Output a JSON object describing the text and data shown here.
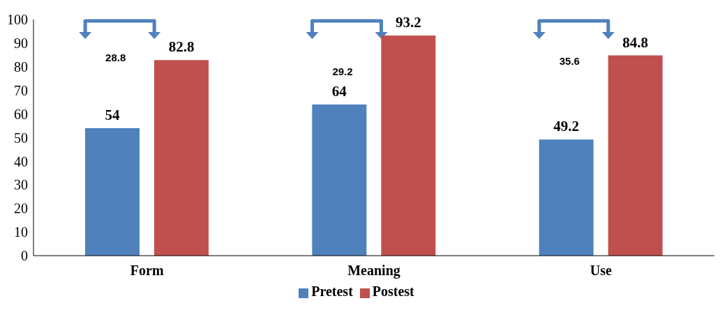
{
  "chart_data": {
    "type": "bar",
    "categories": [
      "Form",
      "Meaning",
      "Use"
    ],
    "series": [
      {
        "name": "Pretest",
        "color": "#4f81bd",
        "values": [
          54,
          64,
          49.2
        ]
      },
      {
        "name": "Postest",
        "color": "#c0504d",
        "values": [
          82.8,
          93.2,
          84.8
        ]
      }
    ],
    "ylim": [
      0,
      100
    ],
    "yticks": [
      0,
      10,
      20,
      30,
      40,
      50,
      60,
      70,
      80,
      90,
      100
    ],
    "grid": false,
    "legend": "bottom",
    "data_labels": true,
    "annotations": [
      "28.8",
      "29.2",
      "35.6"
    ]
  }
}
